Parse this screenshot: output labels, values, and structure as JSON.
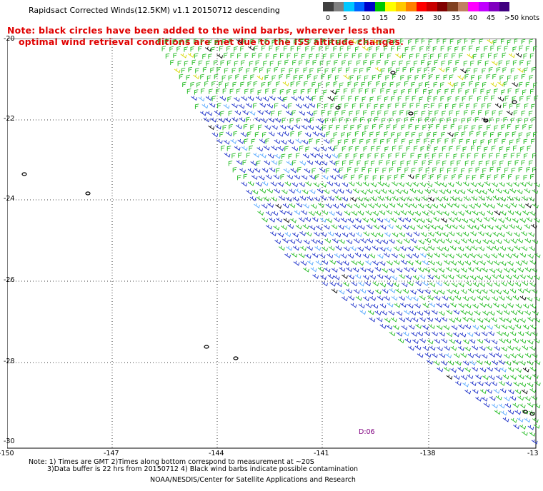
{
  "title": "Rapidsact Corrected Winds(12.5KM) v1.1 20150712 descending",
  "note": {
    "line1": "Note: black circles have been added to the wind barbs, wherever less than",
    "line2": "optimal wind retrieval conditions are met due to the ISS altitude changes."
  },
  "colorbar": {
    "colors": [
      "#404040",
      "#808080",
      "#00c8ff",
      "#0064ff",
      "#0000c8",
      "#00c800",
      "#ffff00",
      "#ffc800",
      "#ff8000",
      "#ff0000",
      "#c80000",
      "#800000",
      "#804020",
      "#c08060",
      "#ff00ff",
      "#c000ff",
      "#8000c0",
      "#400080"
    ],
    "labels": [
      "0",
      "5",
      "10",
      "15",
      "20",
      "25",
      "30",
      "35",
      "40",
      "45",
      ">50 knots"
    ]
  },
  "axes": {
    "y_labels": [
      "-20",
      "-22",
      "-24",
      "-26",
      "-28",
      "-30"
    ],
    "x_labels": [
      "-150",
      "-147",
      "-144",
      "-141",
      "-138",
      "-13"
    ]
  },
  "timestamp_label": "D:06",
  "footer": {
    "line1": "Note: 1) Times are GMT 2)Times along bottom correspond to measurement at ~20S",
    "line2": "3)Data buffer is 22 hrs from 20150712 4) Black wind barbs indicate possible contamination",
    "line3": "NOAA/NESDIS/Center for Satellite Applications and Research"
  },
  "colors": {
    "barb_green": "#22bb22",
    "barb_blue": "#1a2ec8",
    "barb_lightblue": "#55a8ff",
    "barb_yellow": "#d8d800",
    "barb_black": "#000000",
    "note_red": "#e00000",
    "timestamp_purple": "#800080"
  }
}
